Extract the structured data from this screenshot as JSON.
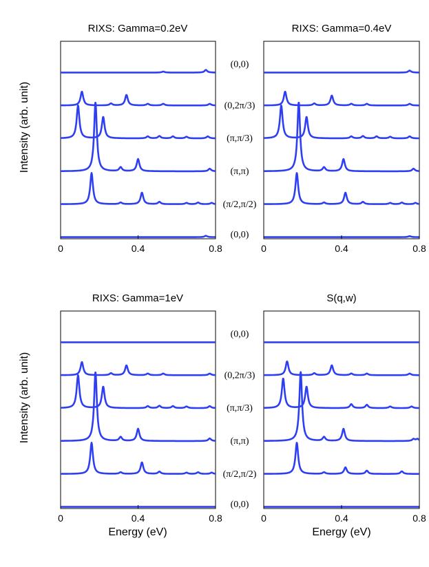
{
  "colors": {
    "trace": "#2e3ff2",
    "axis": "#000000"
  },
  "q_labels": [
    "(0,0)",
    "(0,2π/3)",
    "(π,π/3)",
    "(π,π)",
    "(π/2,π/2)",
    "(0,0)"
  ],
  "chart_data": [
    {
      "type": "line",
      "title": "RIXS: Gamma=0.2eV",
      "xlabel": "",
      "ylabel": "Intensity (arb. unit)",
      "xlim": [
        0,
        0.8
      ],
      "xticks": [
        0,
        0.4,
        0.8
      ],
      "xtick_labels": [
        "0",
        "0.4",
        "0.8"
      ],
      "ylim": [
        0,
        6
      ],
      "series": [
        {
          "name": "(0,0)",
          "offset": 5.0,
          "peaks": [
            [
              0.53,
              0.03
            ],
            [
              0.75,
              0.08
            ]
          ]
        },
        {
          "name": "(0,2π/3)",
          "offset": 4.0,
          "peaks": [
            [
              0.11,
              0.42
            ],
            [
              0.26,
              0.06
            ],
            [
              0.34,
              0.32
            ],
            [
              0.45,
              0.05
            ],
            [
              0.53,
              0.05
            ],
            [
              0.77,
              0.05
            ]
          ]
        },
        {
          "name": "(π,π/3)",
          "offset": 3.0,
          "peaks": [
            [
              0.09,
              1.0
            ],
            [
              0.22,
              0.65
            ],
            [
              0.45,
              0.06
            ],
            [
              0.51,
              0.07
            ],
            [
              0.58,
              0.06
            ],
            [
              0.65,
              0.05
            ],
            [
              0.76,
              0.06
            ]
          ]
        },
        {
          "name": "(π,π)",
          "offset": 2.0,
          "peaks": [
            [
              0.18,
              2.1
            ],
            [
              0.31,
              0.12
            ],
            [
              0.4,
              0.37
            ],
            [
              0.77,
              0.08
            ]
          ]
        },
        {
          "name": "(π/2,π/2)",
          "offset": 1.0,
          "peaks": [
            [
              0.16,
              0.95
            ],
            [
              0.31,
              0.05
            ],
            [
              0.42,
              0.35
            ],
            [
              0.51,
              0.07
            ],
            [
              0.65,
              0.04
            ],
            [
              0.71,
              0.05
            ],
            [
              0.78,
              0.04
            ]
          ]
        },
        {
          "name": "(0,0)",
          "offset": 0.0,
          "peaks": [
            [
              0.75,
              0.04
            ]
          ]
        }
      ]
    },
    {
      "type": "line",
      "title": "RIXS: Gamma=0.4eV",
      "xlabel": "",
      "ylabel": "",
      "xlim": [
        0,
        0.8
      ],
      "xticks": [
        0,
        0.4,
        0.8
      ],
      "xtick_labels": [
        "0",
        "0.4",
        "0.8"
      ],
      "ylim": [
        0,
        6
      ],
      "series": [
        {
          "name": "(0,0)",
          "offset": 5.0,
          "peaks": [
            [
              0.75,
              0.06
            ]
          ]
        },
        {
          "name": "(0,2π/3)",
          "offset": 4.0,
          "peaks": [
            [
              0.11,
              0.42
            ],
            [
              0.26,
              0.06
            ],
            [
              0.35,
              0.3
            ],
            [
              0.45,
              0.05
            ],
            [
              0.53,
              0.05
            ],
            [
              0.75,
              0.05
            ]
          ]
        },
        {
          "name": "(π,π/3)",
          "offset": 3.0,
          "peaks": [
            [
              0.09,
              1.0
            ],
            [
              0.22,
              0.65
            ],
            [
              0.45,
              0.06
            ],
            [
              0.51,
              0.07
            ],
            [
              0.58,
              0.06
            ],
            [
              0.65,
              0.05
            ],
            [
              0.75,
              0.06
            ]
          ]
        },
        {
          "name": "(π,π)",
          "offset": 2.0,
          "peaks": [
            [
              0.18,
              2.1
            ],
            [
              0.31,
              0.12
            ],
            [
              0.41,
              0.37
            ],
            [
              0.77,
              0.08
            ]
          ]
        },
        {
          "name": "(π/2,π/2)",
          "offset": 1.0,
          "peaks": [
            [
              0.17,
              0.95
            ],
            [
              0.31,
              0.05
            ],
            [
              0.42,
              0.35
            ],
            [
              0.51,
              0.07
            ],
            [
              0.65,
              0.04
            ],
            [
              0.71,
              0.05
            ],
            [
              0.78,
              0.04
            ]
          ]
        },
        {
          "name": "(0,0)",
          "offset": 0.0,
          "peaks": [
            [
              0.75,
              0.03
            ]
          ]
        }
      ]
    },
    {
      "type": "line",
      "title": "RIXS: Gamma=1eV",
      "xlabel": "Energy (eV)",
      "ylabel": "Intensity (arb. unit)",
      "xlim": [
        0,
        0.8
      ],
      "xticks": [
        0,
        0.4,
        0.8
      ],
      "xtick_labels": [
        "0",
        "0.4",
        "0.8"
      ],
      "ylim": [
        0,
        6
      ],
      "series": [
        {
          "name": "(0,0)",
          "offset": 5.0,
          "peaks": []
        },
        {
          "name": "(0,2π/3)",
          "offset": 4.0,
          "peaks": [
            [
              0.11,
              0.4
            ],
            [
              0.26,
              0.06
            ],
            [
              0.34,
              0.3
            ],
            [
              0.45,
              0.05
            ],
            [
              0.53,
              0.05
            ],
            [
              0.77,
              0.05
            ]
          ]
        },
        {
          "name": "(π,π/3)",
          "offset": 3.0,
          "peaks": [
            [
              0.09,
              1.0
            ],
            [
              0.22,
              0.65
            ],
            [
              0.45,
              0.06
            ],
            [
              0.51,
              0.07
            ],
            [
              0.58,
              0.06
            ],
            [
              0.65,
              0.05
            ],
            [
              0.77,
              0.06
            ]
          ]
        },
        {
          "name": "(π,π)",
          "offset": 2.0,
          "peaks": [
            [
              0.18,
              2.1
            ],
            [
              0.31,
              0.12
            ],
            [
              0.4,
              0.37
            ],
            [
              0.77,
              0.08
            ]
          ]
        },
        {
          "name": "(π/2,π/2)",
          "offset": 1.0,
          "peaks": [
            [
              0.16,
              0.95
            ],
            [
              0.31,
              0.05
            ],
            [
              0.42,
              0.35
            ],
            [
              0.51,
              0.07
            ],
            [
              0.65,
              0.04
            ],
            [
              0.71,
              0.05
            ],
            [
              0.78,
              0.04
            ]
          ]
        },
        {
          "name": "(0,0)",
          "offset": 0.0,
          "peaks": []
        }
      ]
    },
    {
      "type": "line",
      "title": "S(q,w)",
      "xlabel": "Energy (eV)",
      "ylabel": "",
      "xlim": [
        0,
        0.8
      ],
      "xticks": [
        0,
        0.4,
        0.8
      ],
      "xtick_labels": [
        "0",
        "0.4",
        "0.8"
      ],
      "ylim": [
        0,
        6
      ],
      "series": [
        {
          "name": "(0,0)",
          "offset": 5.0,
          "peaks": []
        },
        {
          "name": "(0,2π/3)",
          "offset": 4.0,
          "peaks": [
            [
              0.12,
              0.42
            ],
            [
              0.26,
              0.06
            ],
            [
              0.35,
              0.3
            ],
            [
              0.45,
              0.05
            ],
            [
              0.53,
              0.05
            ],
            [
              0.75,
              0.05
            ]
          ]
        },
        {
          "name": "(π,π/3)",
          "offset": 3.0,
          "peaks": [
            [
              0.1,
              0.9
            ],
            [
              0.22,
              0.65
            ],
            [
              0.45,
              0.12
            ],
            [
              0.53,
              0.1
            ],
            [
              0.65,
              0.05
            ],
            [
              0.76,
              0.05
            ]
          ]
        },
        {
          "name": "(π,π)",
          "offset": 2.0,
          "peaks": [
            [
              0.19,
              2.1
            ],
            [
              0.31,
              0.12
            ],
            [
              0.41,
              0.37
            ],
            [
              0.77,
              0.06
            ],
            [
              0.79,
              0.06
            ]
          ]
        },
        {
          "name": "(π/2,π/2)",
          "offset": 1.0,
          "peaks": [
            [
              0.17,
              0.95
            ],
            [
              0.31,
              0.05
            ],
            [
              0.42,
              0.2
            ],
            [
              0.53,
              0.1
            ],
            [
              0.71,
              0.08
            ]
          ]
        },
        {
          "name": "(0,0)",
          "offset": 0.0,
          "peaks": []
        }
      ]
    }
  ]
}
